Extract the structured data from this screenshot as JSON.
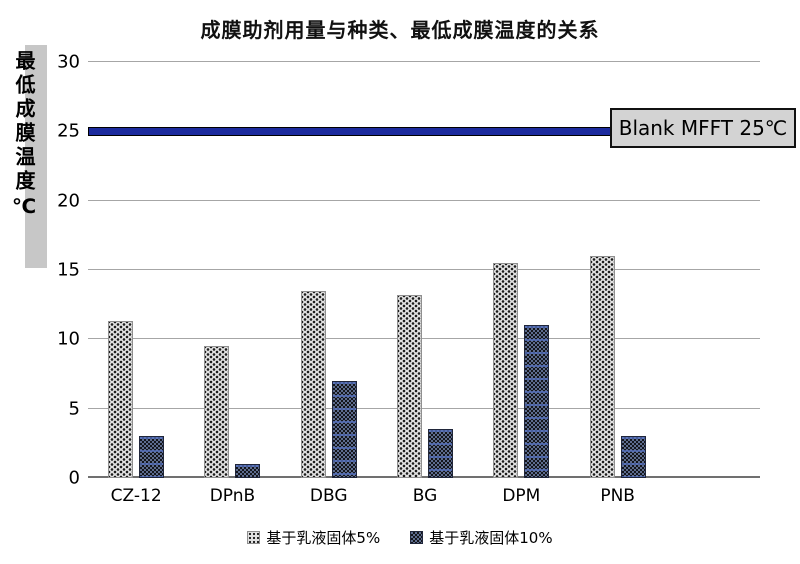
{
  "chart": {
    "title": "成膜助剂用量与种类、最低成膜温度的关系",
    "y_axis_label": "最低成膜温度℃",
    "blank_line": {
      "value": 25,
      "label": "Blank MFFT 25℃"
    }
  },
  "chart_data": {
    "type": "bar",
    "title": "成膜助剂用量与种类、最低成膜温度的关系",
    "categories": [
      "CZ-12",
      "DPnB",
      "DBG",
      "BG",
      "DPM",
      "PNB"
    ],
    "series": [
      {
        "name": "基于乳液固体5%",
        "values": [
          11.3,
          9.5,
          13.5,
          13.2,
          15.5,
          16
        ]
      },
      {
        "name": "基于乳液固体10%",
        "values": [
          3,
          1,
          7,
          3.5,
          11,
          3
        ]
      }
    ],
    "xlabel": "",
    "ylabel": "最低成膜温度℃",
    "ylim": [
      0,
      30
    ],
    "yticks": [
      0,
      5,
      10,
      15,
      20,
      25,
      30
    ],
    "grid": true,
    "legend_position": "bottom",
    "annotations": [
      {
        "type": "hline",
        "value": 25,
        "label": "Blank MFFT 25℃"
      }
    ]
  }
}
